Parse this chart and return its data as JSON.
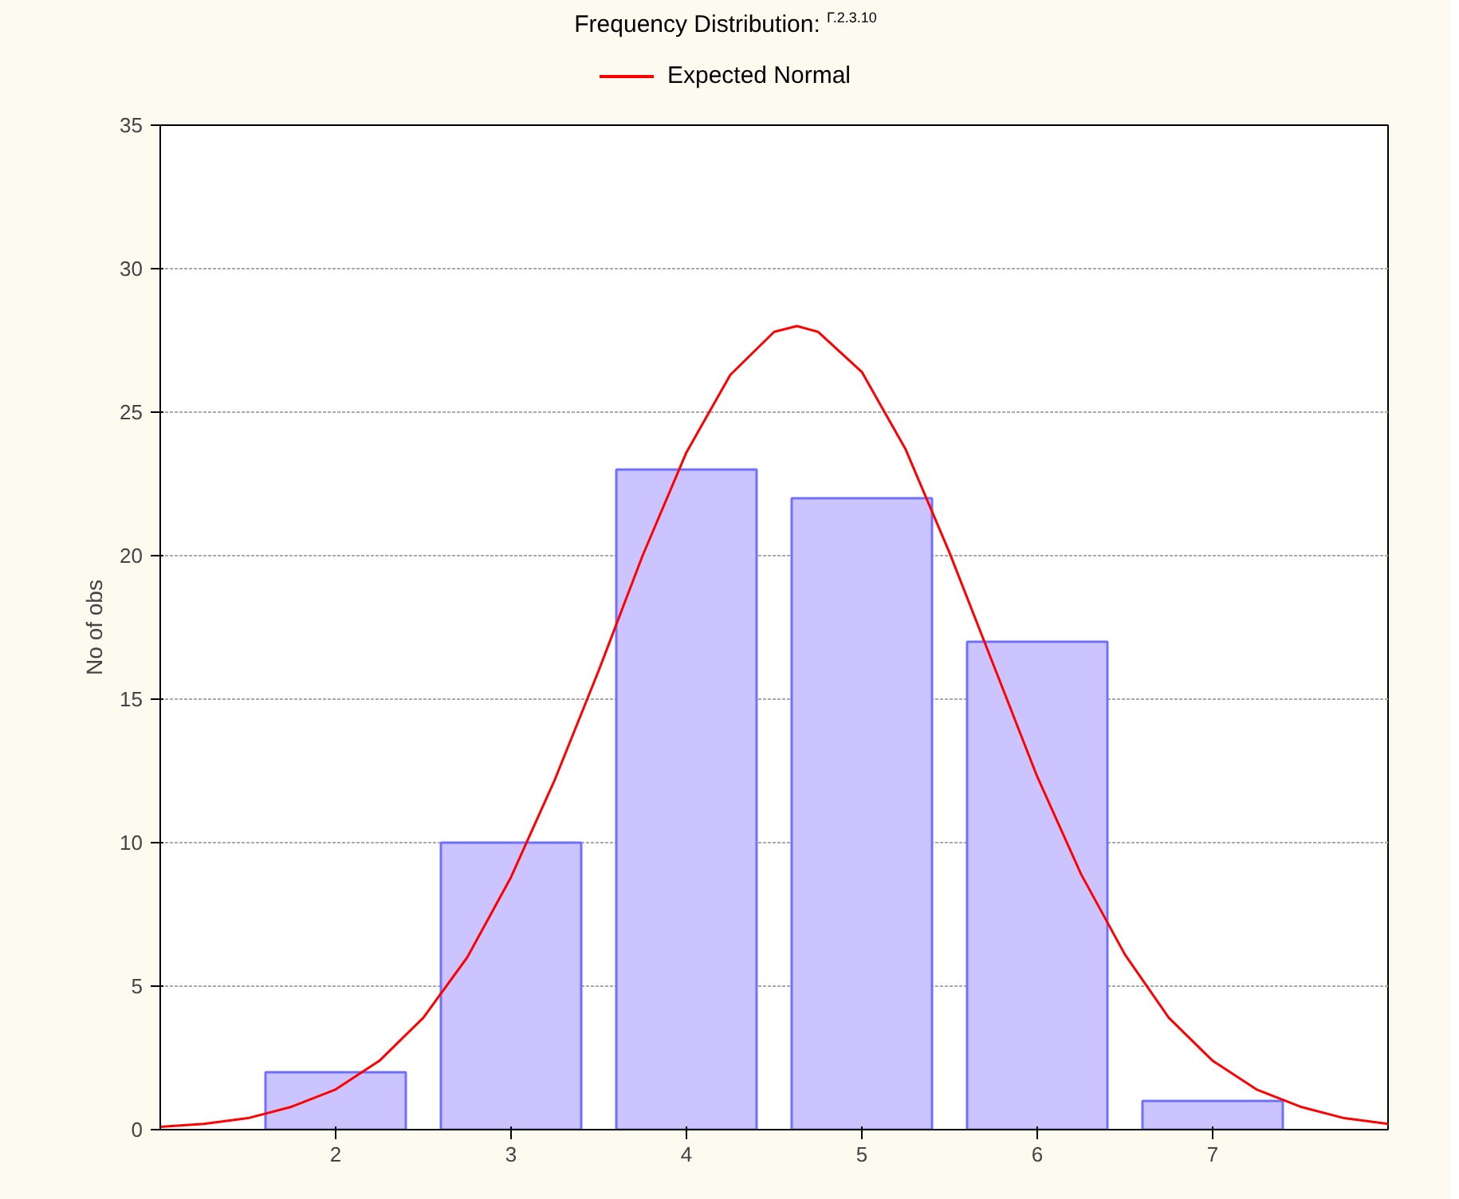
{
  "chart_data": {
    "type": "bar",
    "title": "Frequency Distribution: $^{Г.2.3.10}$",
    "ylabel": "No of obs",
    "xlim": [
      1,
      8
    ],
    "xticks": [
      2,
      3,
      4,
      5,
      6,
      7
    ],
    "ylim": [
      0,
      35
    ],
    "yticks": [
      0,
      5,
      10,
      15,
      20,
      25,
      30,
      35
    ],
    "grid": "y",
    "legend": "top",
    "series": [
      {
        "color": "#ccc4ff",
        "x": [
          2,
          3,
          4,
          5,
          6,
          7
        ],
        "values": [
          2,
          10,
          23,
          22,
          17,
          1
        ]
      },
      {
        "type": "line",
        "name": "Expected Normal",
        "color": "#ff0000",
        "x": [
          1,
          1.25,
          1.5,
          1.75,
          2,
          2.25,
          2.5,
          2.75,
          3,
          3.25,
          3.5,
          3.75,
          4,
          4.25,
          4.5,
          4.63,
          4.75,
          5,
          5.25,
          5.5,
          5.75,
          6,
          6.25,
          6.5,
          6.75,
          7,
          7.25,
          7.5,
          7.75,
          8
        ],
        "values": [
          0.1,
          0.2,
          0.4,
          0.8,
          1.4,
          2.4,
          3.9,
          6.0,
          8.8,
          12.2,
          16.0,
          20.0,
          23.6,
          26.3,
          27.8,
          28.0,
          27.8,
          26.4,
          23.7,
          20.1,
          16.2,
          12.3,
          8.9,
          6.1,
          3.9,
          2.4,
          1.4,
          0.8,
          0.4,
          0.2
        ]
      }
    ]
  }
}
